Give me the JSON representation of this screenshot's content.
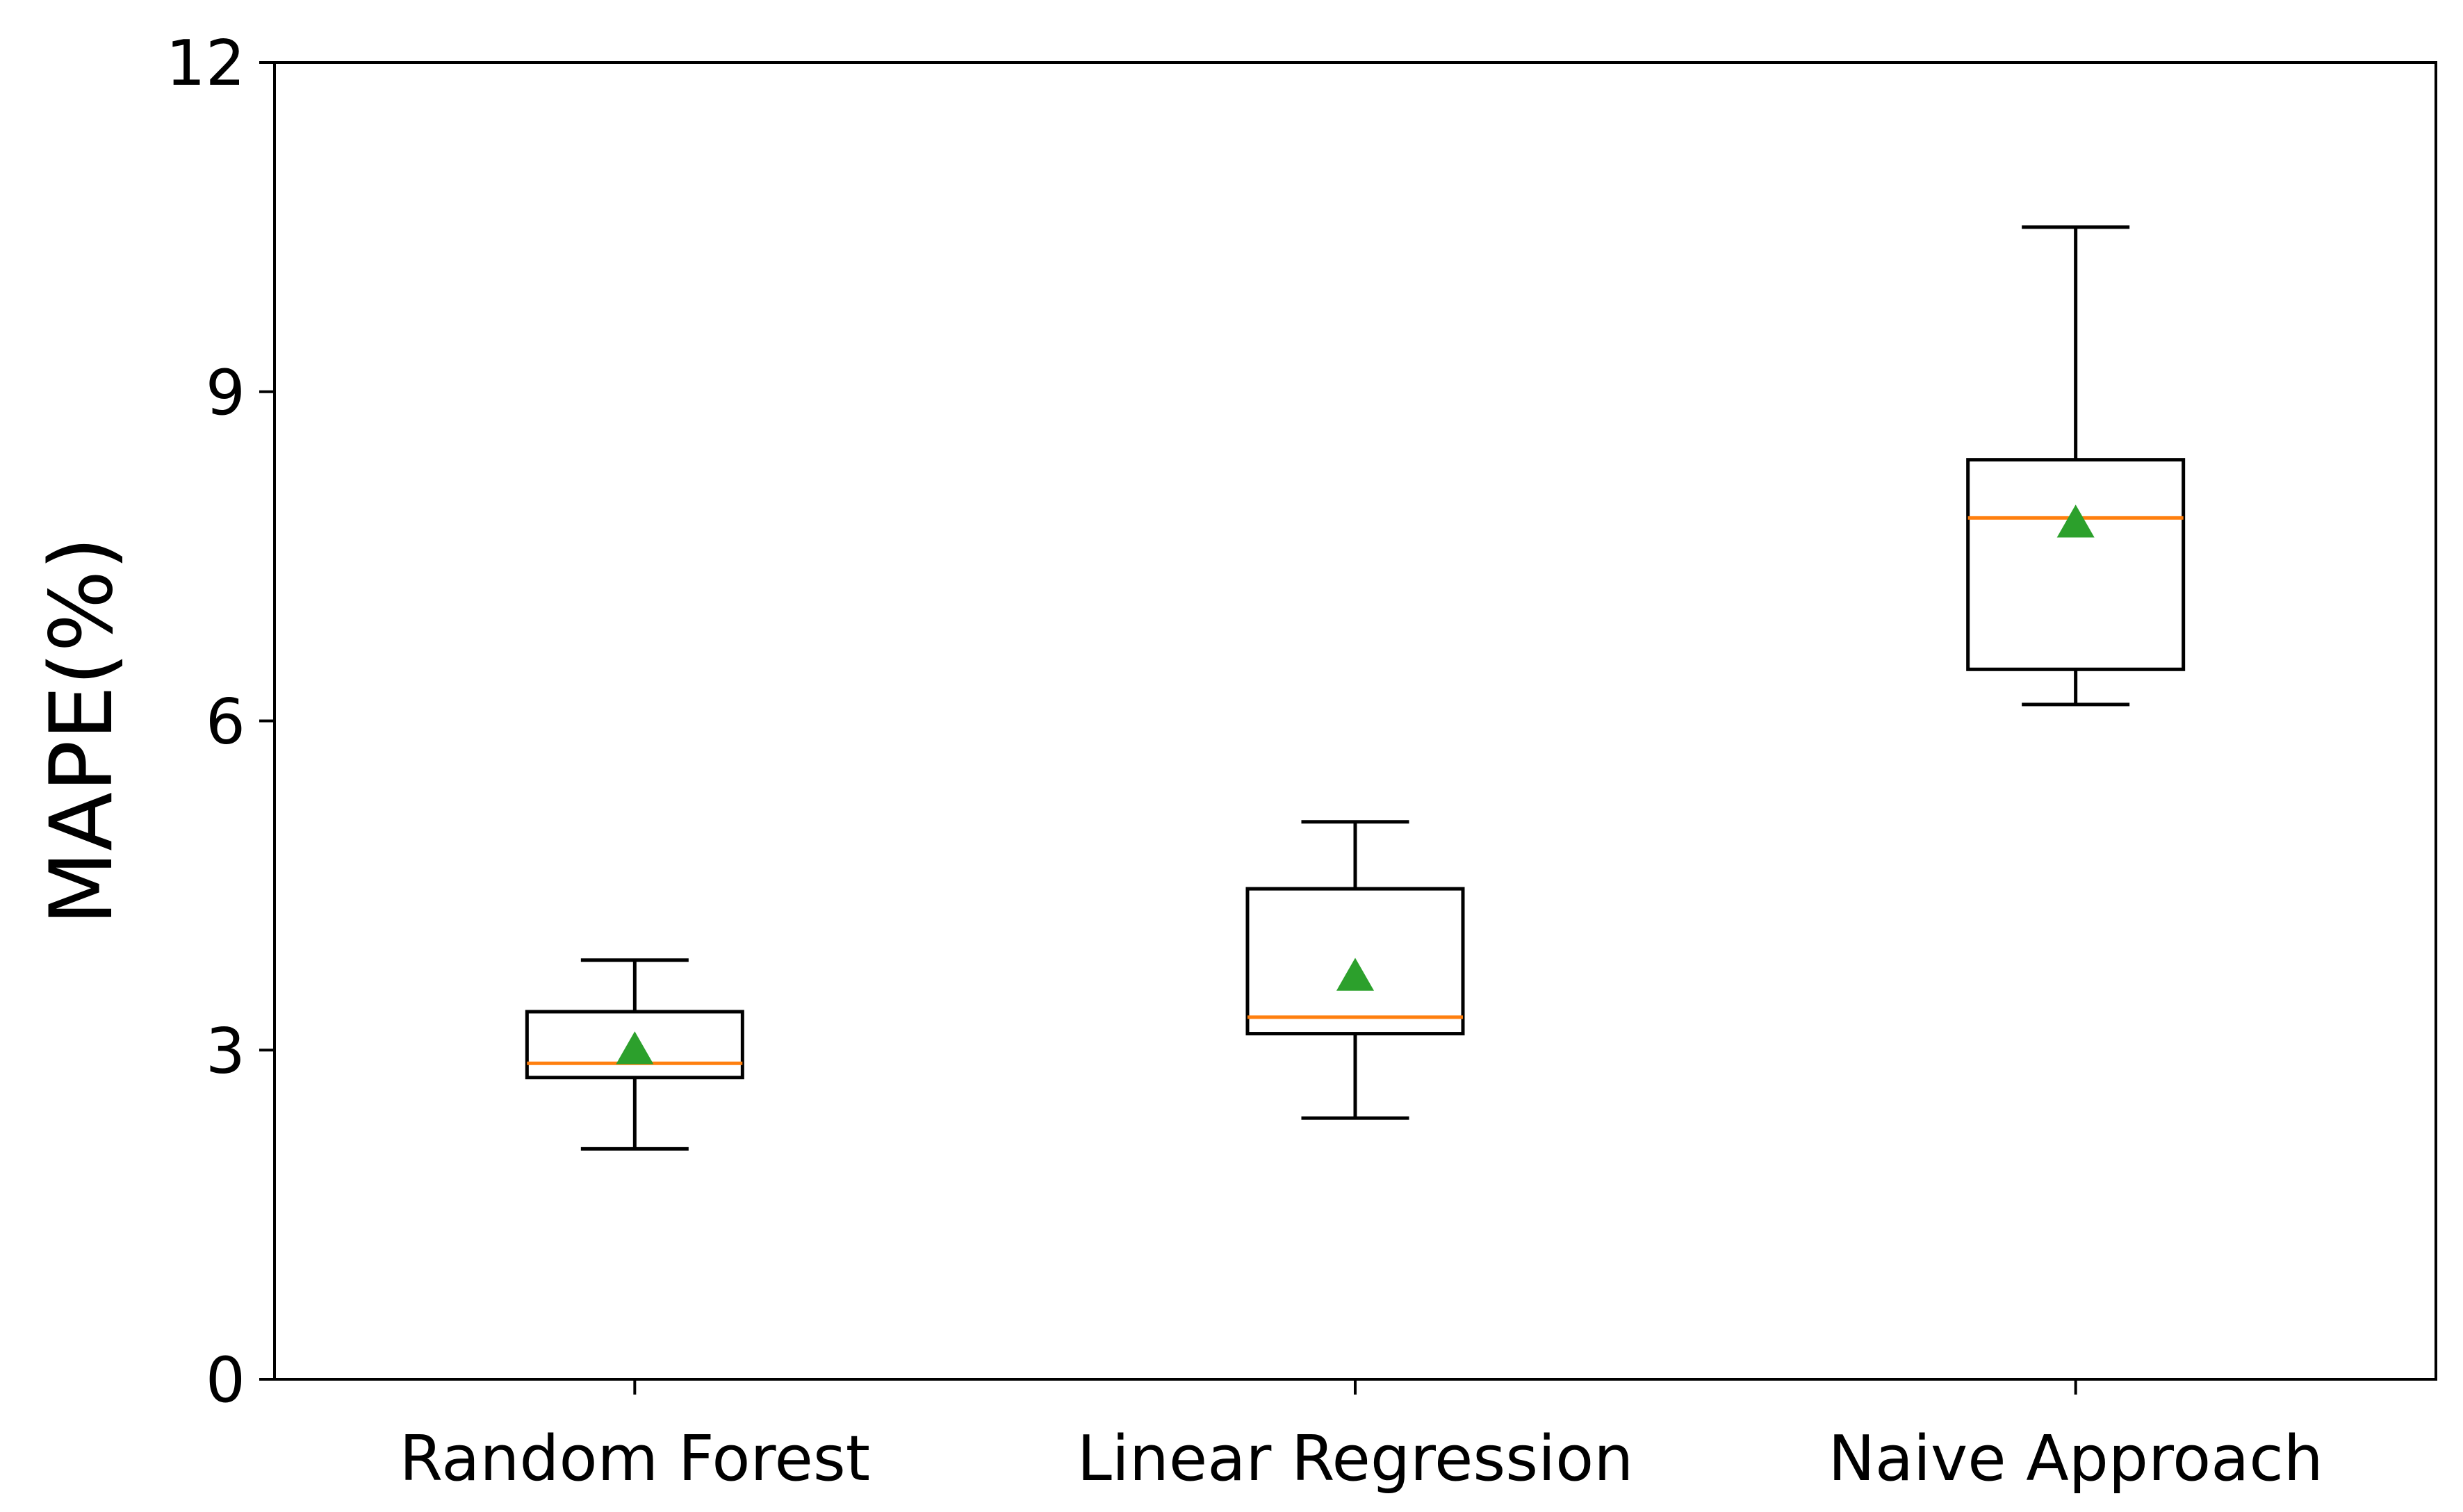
{
  "chart_data": {
    "type": "box",
    "title": "",
    "xlabel": "",
    "ylabel": "MAPE(%)",
    "ylim": [
      0,
      12
    ],
    "yticks": [
      "0",
      "3",
      "6",
      "9",
      "12"
    ],
    "grid": false,
    "categories": [
      "Random Forest",
      "Linear Regression",
      "Naive Approach"
    ],
    "boxes": [
      {
        "category": "Random Forest",
        "whisker_low": 2.1,
        "q1": 2.75,
        "median": 2.88,
        "q3": 3.35,
        "whisker_high": 3.82,
        "mean": 3.0
      },
      {
        "category": "Linear Regression",
        "whisker_low": 2.38,
        "q1": 3.15,
        "median": 3.3,
        "q3": 4.47,
        "whisker_high": 5.08,
        "mean": 3.67
      },
      {
        "category": "Naive Approach",
        "whisker_low": 6.15,
        "q1": 6.47,
        "median": 7.85,
        "q3": 8.38,
        "whisker_high": 10.5,
        "mean": 7.8
      }
    ],
    "colors": {
      "box": "#000000",
      "median": "#ff7f0e",
      "mean": "#2ca02c"
    }
  }
}
